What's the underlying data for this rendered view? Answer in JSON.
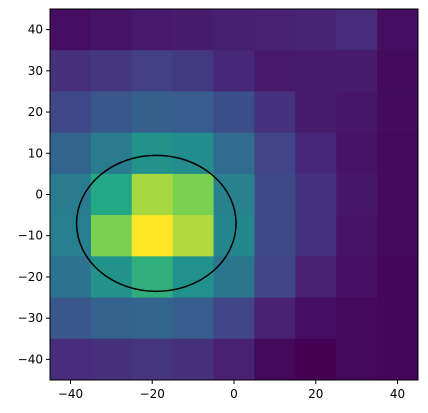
{
  "chart_data": {
    "type": "heatmap",
    "title": "",
    "xlabel": "",
    "ylabel": "",
    "colormap": "viridis",
    "xlim": [
      -45,
      45
    ],
    "ylim": [
      -45,
      45
    ],
    "x_bin_edges": [
      -45,
      -35,
      -25,
      -15,
      -5,
      5,
      15,
      25,
      35,
      45
    ],
    "y_bin_edges": [
      -45,
      -35,
      -25,
      -15,
      -5,
      5,
      15,
      25,
      35,
      45
    ],
    "x_ticks": [
      -40,
      -20,
      0,
      20,
      40
    ],
    "y_ticks": [
      -40,
      -30,
      -20,
      -10,
      0,
      10,
      20,
      30,
      40
    ],
    "values_top_to_bottom": [
      [
        0.05,
        0.07,
        0.09,
        0.1,
        0.11,
        0.12,
        0.13,
        0.16,
        0.05
      ],
      [
        0.17,
        0.2,
        0.23,
        0.21,
        0.14,
        0.09,
        0.1,
        0.1,
        0.04
      ],
      [
        0.27,
        0.34,
        0.38,
        0.37,
        0.3,
        0.18,
        0.1,
        0.08,
        0.04
      ],
      [
        0.41,
        0.52,
        0.64,
        0.61,
        0.44,
        0.25,
        0.14,
        0.07,
        0.03
      ],
      [
        0.52,
        0.75,
        0.92,
        0.88,
        0.55,
        0.28,
        0.18,
        0.08,
        0.03
      ],
      [
        0.54,
        0.88,
        1.0,
        0.93,
        0.58,
        0.28,
        0.18,
        0.07,
        0.03
      ],
      [
        0.47,
        0.64,
        0.77,
        0.63,
        0.49,
        0.26,
        0.12,
        0.06,
        0.02
      ],
      [
        0.34,
        0.39,
        0.41,
        0.37,
        0.26,
        0.12,
        0.05,
        0.03,
        0.02
      ],
      [
        0.16,
        0.17,
        0.19,
        0.17,
        0.12,
        0.03,
        0.0,
        0.03,
        0.02
      ]
    ],
    "ellipse": {
      "center": [
        -19,
        -7
      ],
      "width": 39,
      "height": 33,
      "color": "#000000"
    }
  }
}
